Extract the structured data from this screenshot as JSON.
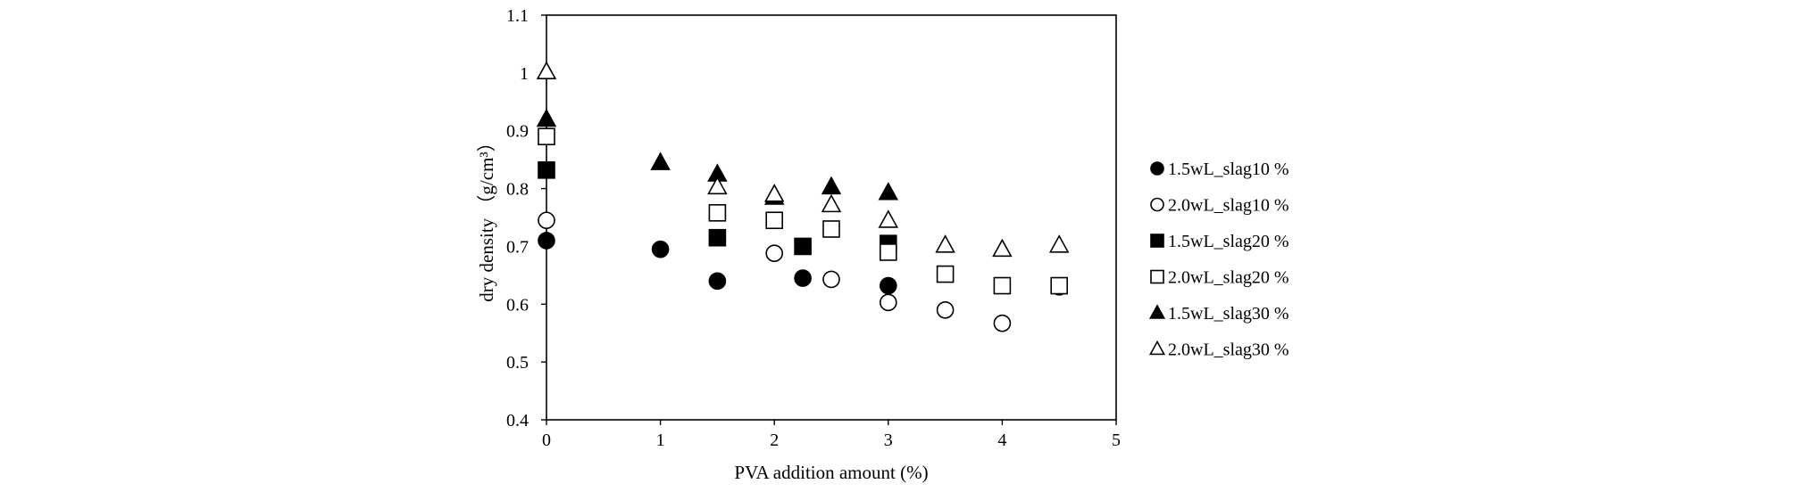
{
  "chart_data": {
    "type": "scatter",
    "title": "",
    "xlabel": "PVA addition amount (%)",
    "ylabel": "dry density （g/cm³）",
    "xlim": [
      0,
      5
    ],
    "ylim": [
      0.4,
      1.1
    ],
    "xticks": [
      0,
      1,
      2,
      3,
      4,
      5
    ],
    "xtick_labels": [
      "0",
      "1",
      "2",
      "3",
      "4",
      "5"
    ],
    "yticks": [
      0.4,
      0.5,
      0.6,
      0.7,
      0.8,
      0.9,
      1.0,
      1.1
    ],
    "ytick_labels": [
      "0.4",
      "0.5",
      "0.6",
      "0.7",
      "0.8",
      "0.9",
      "1",
      "1.1"
    ],
    "grid": false,
    "legend_position": "right",
    "series": [
      {
        "name": "1.5wL_slag10 %",
        "marker": "circle",
        "filled": true,
        "points": [
          [
            0,
            0.71
          ],
          [
            1,
            0.695
          ],
          [
            1.5,
            0.64
          ],
          [
            2.25,
            0.645
          ],
          [
            3,
            0.632
          ]
        ]
      },
      {
        "name": "2.0wL_slag10 %",
        "marker": "circle",
        "filled": false,
        "points": [
          [
            0,
            0.745
          ],
          [
            2,
            0.688
          ],
          [
            2.5,
            0.643
          ],
          [
            3,
            0.603
          ],
          [
            3.5,
            0.59
          ],
          [
            4,
            0.567
          ],
          [
            4.5,
            0.63
          ]
        ]
      },
      {
        "name": "1.5wL_slag20 %",
        "marker": "square",
        "filled": true,
        "points": [
          [
            0,
            0.832
          ],
          [
            1.5,
            0.715
          ],
          [
            2.25,
            0.7
          ],
          [
            3,
            0.705
          ]
        ]
      },
      {
        "name": "2.0wL_slag20 %",
        "marker": "square",
        "filled": false,
        "points": [
          [
            0,
            0.89
          ],
          [
            1.5,
            0.758
          ],
          [
            2,
            0.745
          ],
          [
            2.5,
            0.73
          ],
          [
            3,
            0.69
          ],
          [
            3.5,
            0.652
          ],
          [
            4,
            0.632
          ],
          [
            4.5,
            0.632
          ]
        ]
      },
      {
        "name": "1.5wL_slag30 %",
        "marker": "triangle",
        "filled": true,
        "points": [
          [
            0,
            0.92
          ],
          [
            1,
            0.845
          ],
          [
            1.5,
            0.825
          ],
          [
            2,
            0.785
          ],
          [
            2.5,
            0.803
          ],
          [
            3,
            0.793
          ]
        ]
      },
      {
        "name": "2.0wL_slag30 %",
        "marker": "triangle",
        "filled": false,
        "points": [
          [
            0,
            1.002
          ],
          [
            1.5,
            0.803
          ],
          [
            2,
            0.79
          ],
          [
            2.5,
            0.772
          ],
          [
            3,
            0.745
          ],
          [
            3.5,
            0.702
          ],
          [
            4,
            0.695
          ],
          [
            4.5,
            0.702
          ]
        ]
      }
    ]
  }
}
